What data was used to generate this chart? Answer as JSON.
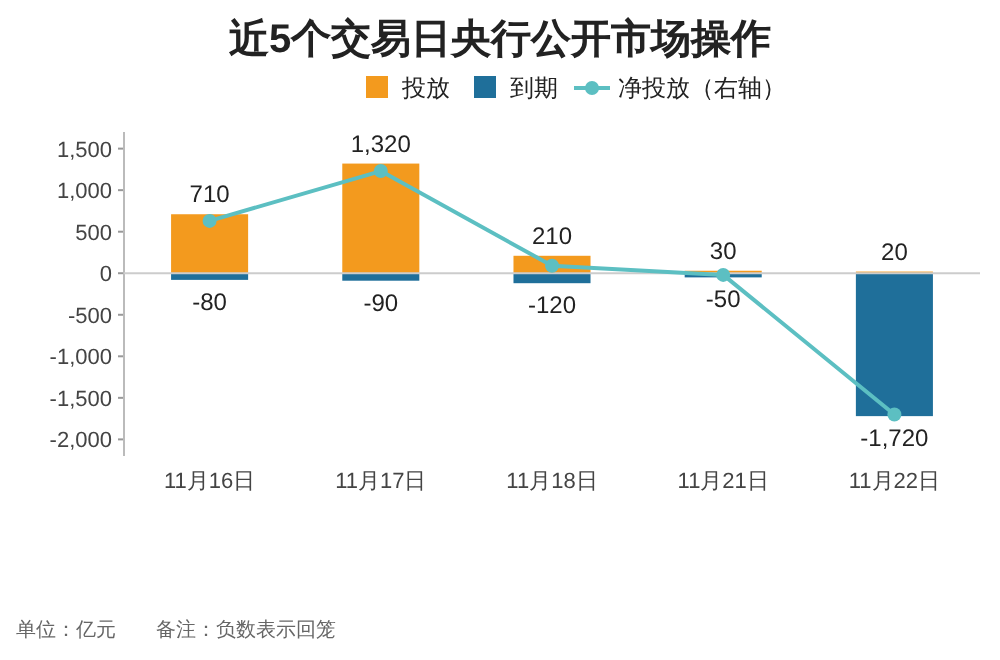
{
  "chart_data": {
    "type": "bar",
    "title": "近5个交易日央行公开市场操作",
    "stacked": true,
    "legend": "top",
    "categories": [
      "11月16日",
      "11月17日",
      "11月18日",
      "11月21日",
      "11月22日"
    ],
    "ylim": [
      -2200,
      1700
    ],
    "yticks": [
      {
        "value": -2000,
        "label": "-2,000"
      },
      {
        "value": -1500,
        "label": "-1,500"
      },
      {
        "value": -1000,
        "label": "-1,000"
      },
      {
        "value": -500,
        "label": "-500"
      },
      0,
      {
        "value": 500,
        "label": "500"
      },
      {
        "value": 1000,
        "label": "1,000"
      },
      {
        "value": 1500,
        "label": "1,500"
      }
    ],
    "series": [
      {
        "name": "投放",
        "color": "#f39a1e",
        "values": [
          710,
          1320,
          210,
          30,
          20
        ],
        "value_labels": [
          "710",
          "1,320",
          "210",
          "30",
          "20"
        ]
      },
      {
        "name": "到期",
        "color": "#1f6f9a",
        "values": [
          -80,
          -90,
          -120,
          -50,
          -1720
        ],
        "value_labels": [
          "-80",
          "-90",
          "-120",
          "-50",
          "-1,720"
        ]
      },
      {
        "name": "净投放（右轴）",
        "type": "line",
        "color": "#5cbfc2",
        "marker": "circle",
        "values": [
          630,
          1230,
          90,
          -20,
          -1700
        ]
      }
    ],
    "annotations": [
      "单位：亿元",
      "备注：负数表示回笼"
    ]
  }
}
